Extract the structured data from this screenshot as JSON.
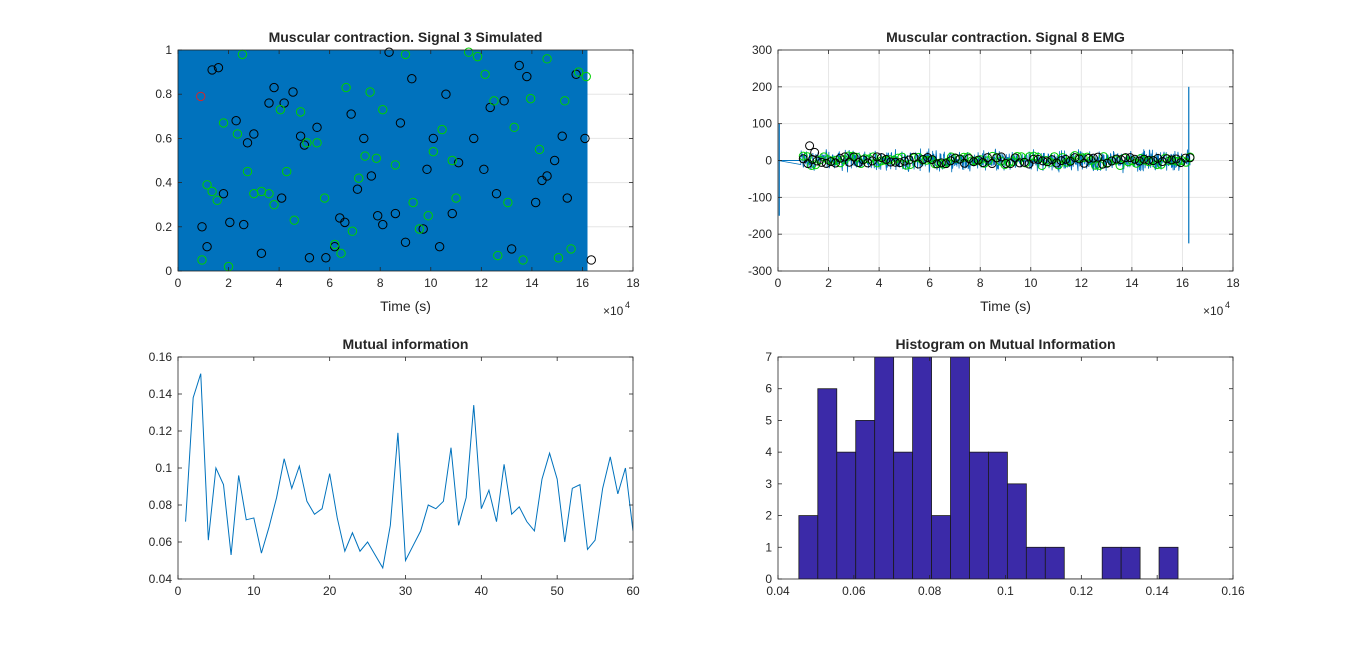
{
  "chart_data": [
    {
      "id": "signal3",
      "type": "scatter",
      "title": "Muscular contraction. Signal 3 Simulated",
      "xlabel": "Time (s)",
      "ylabel": "",
      "x_exponent_label": "×10",
      "x_exponent_power": "4",
      "xlim": [
        0,
        18
      ],
      "ylim": [
        0,
        1
      ],
      "xticks": [
        "0",
        "2",
        "4",
        "6",
        "8",
        "10",
        "12",
        "14",
        "16",
        "18"
      ],
      "yticks": [
        "0",
        "0.2",
        "0.4",
        "0.6",
        "0.8",
        "1"
      ],
      "grid": true,
      "signal_fill": {
        "x_range": [
          0,
          16.2
        ],
        "y_range": [
          0,
          1
        ],
        "color": "#0072bd"
      },
      "series": [
        {
          "marker": "circle",
          "color": "#000000",
          "points": [
            [
              0.95,
              0.2
            ],
            [
              1.15,
              0.11
            ],
            [
              1.35,
              0.91
            ],
            [
              1.6,
              0.92
            ],
            [
              1.8,
              0.35
            ],
            [
              2.05,
              0.22
            ],
            [
              2.3,
              0.68
            ],
            [
              2.6,
              0.21
            ],
            [
              2.75,
              0.58
            ],
            [
              3.0,
              0.62
            ],
            [
              3.3,
              0.08
            ],
            [
              3.6,
              0.76
            ],
            [
              3.8,
              0.83
            ],
            [
              4.1,
              0.33
            ],
            [
              4.2,
              0.76
            ],
            [
              4.55,
              0.81
            ],
            [
              4.85,
              0.61
            ],
            [
              5.0,
              0.57
            ],
            [
              5.2,
              0.06
            ],
            [
              5.5,
              0.65
            ],
            [
              5.85,
              0.06
            ],
            [
              6.2,
              0.11
            ],
            [
              6.4,
              0.24
            ],
            [
              6.6,
              0.22
            ],
            [
              6.85,
              0.71
            ],
            [
              7.1,
              0.37
            ],
            [
              7.35,
              0.6
            ],
            [
              7.65,
              0.43
            ],
            [
              7.9,
              0.25
            ],
            [
              8.1,
              0.21
            ],
            [
              8.35,
              0.99
            ],
            [
              8.6,
              0.26
            ],
            [
              8.8,
              0.67
            ],
            [
              9.0,
              0.13
            ],
            [
              9.25,
              0.87
            ],
            [
              9.7,
              0.19
            ],
            [
              9.85,
              0.46
            ],
            [
              10.1,
              0.6
            ],
            [
              10.35,
              0.11
            ],
            [
              10.6,
              0.8
            ],
            [
              10.85,
              0.26
            ],
            [
              11.1,
              0.49
            ],
            [
              11.7,
              0.6
            ],
            [
              12.1,
              0.46
            ],
            [
              12.35,
              0.74
            ],
            [
              12.6,
              0.35
            ],
            [
              12.9,
              0.77
            ],
            [
              13.2,
              0.1
            ],
            [
              13.5,
              0.93
            ],
            [
              13.8,
              0.88
            ],
            [
              14.15,
              0.31
            ],
            [
              14.4,
              0.41
            ],
            [
              14.6,
              0.43
            ],
            [
              14.9,
              0.5
            ],
            [
              15.2,
              0.61
            ],
            [
              15.4,
              0.33
            ],
            [
              15.75,
              0.89
            ],
            [
              16.1,
              0.6
            ],
            [
              16.35,
              0.05
            ]
          ]
        },
        {
          "marker": "circle",
          "color": "#00d000",
          "points": [
            [
              0.95,
              0.05
            ],
            [
              1.15,
              0.39
            ],
            [
              1.35,
              0.36
            ],
            [
              1.55,
              0.32
            ],
            [
              1.8,
              0.67
            ],
            [
              2.0,
              0.02
            ],
            [
              2.35,
              0.62
            ],
            [
              2.55,
              0.98
            ],
            [
              2.75,
              0.45
            ],
            [
              3.0,
              0.35
            ],
            [
              3.3,
              0.36
            ],
            [
              3.6,
              0.35
            ],
            [
              3.8,
              0.3
            ],
            [
              4.05,
              0.73
            ],
            [
              4.3,
              0.45
            ],
            [
              4.6,
              0.23
            ],
            [
              4.85,
              0.72
            ],
            [
              5.1,
              0.58
            ],
            [
              5.5,
              0.58
            ],
            [
              5.8,
              0.33
            ],
            [
              6.2,
              0.12
            ],
            [
              6.45,
              0.08
            ],
            [
              6.65,
              0.83
            ],
            [
              6.9,
              0.18
            ],
            [
              7.15,
              0.42
            ],
            [
              7.4,
              0.52
            ],
            [
              7.6,
              0.81
            ],
            [
              7.85,
              0.51
            ],
            [
              8.1,
              0.73
            ],
            [
              8.6,
              0.48
            ],
            [
              9.0,
              0.98
            ],
            [
              9.3,
              0.31
            ],
            [
              9.55,
              0.19
            ],
            [
              9.9,
              0.25
            ],
            [
              10.1,
              0.54
            ],
            [
              10.45,
              0.64
            ],
            [
              10.85,
              0.5
            ],
            [
              11.0,
              0.33
            ],
            [
              11.5,
              0.99
            ],
            [
              11.85,
              0.97
            ],
            [
              12.15,
              0.89
            ],
            [
              12.5,
              0.77
            ],
            [
              12.65,
              0.07
            ],
            [
              13.05,
              0.31
            ],
            [
              13.3,
              0.65
            ],
            [
              13.65,
              0.05
            ],
            [
              13.95,
              0.78
            ],
            [
              14.3,
              0.55
            ],
            [
              14.6,
              0.96
            ],
            [
              15.05,
              0.06
            ],
            [
              15.3,
              0.77
            ],
            [
              15.55,
              0.1
            ],
            [
              15.85,
              0.9
            ],
            [
              16.15,
              0.88
            ]
          ]
        },
        {
          "marker": "circle",
          "color": "#d62728",
          "points": [
            [
              0.9,
              0.79
            ]
          ]
        }
      ]
    },
    {
      "id": "signal8",
      "type": "line",
      "title": "Muscular contraction. Signal 8 EMG",
      "xlabel": "Time (s)",
      "ylabel": "",
      "x_exponent_label": "×10",
      "x_exponent_power": "4",
      "xlim": [
        0,
        18
      ],
      "ylim": [
        -300,
        300
      ],
      "xticks": [
        "0",
        "2",
        "4",
        "6",
        "8",
        "10",
        "12",
        "14",
        "16",
        "18"
      ],
      "yticks": [
        "-300",
        "-200",
        "-100",
        "0",
        "100",
        "200",
        "300"
      ],
      "grid": true,
      "signal": {
        "color": "#0072bd",
        "active_range": [
          0.9,
          16.3
        ],
        "amplitude": 35,
        "spikes": [
          [
            0.05,
            100
          ],
          [
            0.05,
            -150
          ],
          [
            16.25,
            200
          ],
          [
            16.25,
            -225
          ]
        ]
      },
      "markers": [
        {
          "color": "#00d000",
          "x_range": [
            1.0,
            16.3
          ],
          "count": 95,
          "spread": 14
        },
        {
          "color": "#000000",
          "x_range": [
            1.0,
            16.3
          ],
          "count": 85,
          "spread": 10,
          "extra": [
            [
              1.25,
              40
            ],
            [
              1.45,
              22
            ]
          ]
        }
      ]
    },
    {
      "id": "mutual",
      "type": "line",
      "title": "Mutual information",
      "xlabel": "",
      "ylabel": "",
      "xlim": [
        0,
        60
      ],
      "ylim": [
        0.04,
        0.16
      ],
      "xticks": [
        "0",
        "10",
        "20",
        "30",
        "40",
        "50",
        "60"
      ],
      "yticks": [
        "0.04",
        "0.06",
        "0.08",
        "0.1",
        "0.12",
        "0.14",
        "0.16"
      ],
      "grid": false,
      "color": "#0072bd",
      "x": [
        1,
        2,
        3,
        4,
        5,
        6,
        7,
        8,
        9,
        10,
        11,
        12,
        13,
        14,
        15,
        16,
        17,
        18,
        19,
        20,
        21,
        22,
        23,
        24,
        25,
        26,
        27,
        28,
        29,
        30,
        31,
        32,
        33,
        34,
        35,
        36,
        37,
        38,
        39,
        40,
        41,
        42,
        43,
        44,
        45,
        46,
        47,
        48,
        49,
        50,
        51,
        52,
        53,
        54,
        55,
        56,
        57,
        58,
        59,
        60
      ],
      "y": [
        0.071,
        0.138,
        0.151,
        0.061,
        0.1,
        0.091,
        0.053,
        0.096,
        0.072,
        0.073,
        0.054,
        0.068,
        0.084,
        0.105,
        0.089,
        0.101,
        0.082,
        0.075,
        0.078,
        0.097,
        0.073,
        0.055,
        0.065,
        0.055,
        0.06,
        0.053,
        0.046,
        0.069,
        0.119,
        0.05,
        0.058,
        0.066,
        0.08,
        0.078,
        0.082,
        0.111,
        0.069,
        0.084,
        0.134,
        0.078,
        0.088,
        0.071,
        0.102,
        0.075,
        0.079,
        0.071,
        0.066,
        0.094,
        0.108,
        0.094,
        0.06,
        0.089,
        0.091,
        0.056,
        0.061,
        0.089,
        0.106,
        0.086,
        0.1,
        0.066
      ]
    },
    {
      "id": "histogram",
      "type": "bar",
      "title": "Histogram on Mutual Information",
      "xlabel": "",
      "ylabel": "",
      "xlim": [
        0.04,
        0.16
      ],
      "ylim": [
        0,
        7
      ],
      "xticks": [
        "0.04",
        "0.06",
        "0.08",
        "0.1",
        "0.12",
        "0.14",
        "0.16"
      ],
      "yticks": [
        "0",
        "1",
        "2",
        "3",
        "4",
        "5",
        "6",
        "7"
      ],
      "grid": false,
      "color": "#3b2aa8",
      "bin_start": 0.0455,
      "bin_width": 0.005,
      "values": [
        2,
        6,
        4,
        5,
        7,
        4,
        7,
        2,
        7,
        4,
        4,
        3,
        1,
        1,
        0,
        0,
        1,
        1,
        0,
        1
      ]
    }
  ]
}
